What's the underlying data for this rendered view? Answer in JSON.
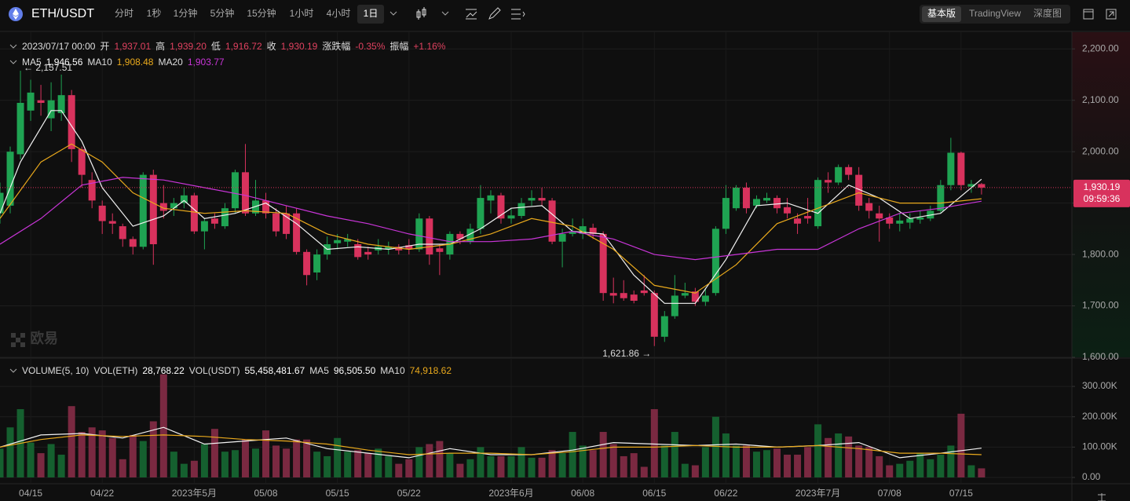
{
  "header": {
    "symbol": "ETH/USDT",
    "intervals": [
      "分时",
      "1秒",
      "1分钟",
      "5分钟",
      "15分钟",
      "1小时",
      "4小时",
      "1日"
    ],
    "active_interval": 7,
    "views": [
      "基本版",
      "TradingView",
      "深度图"
    ],
    "active_view": 0
  },
  "watermark": "欧易",
  "info": {
    "datetime": "2023/07/17 00:00",
    "fields": [
      {
        "label": "开",
        "value": "1,937.01"
      },
      {
        "label": "高",
        "value": "1,939.20"
      },
      {
        "label": "低",
        "value": "1,916.72"
      },
      {
        "label": "收",
        "value": "1,930.19"
      },
      {
        "label": "涨跌幅",
        "value": "-0.35%"
      },
      {
        "label": "振幅",
        "value": "+1.16%"
      }
    ]
  },
  "chart_data": [
    {
      "type": "candlestick",
      "up_color": "#1fa352",
      "down_color": "#d8325d",
      "grid": true,
      "ylim": [
        1600,
        2234
      ],
      "yticks": [
        {
          "value": 1600,
          "label": "1,600.00"
        },
        {
          "value": 1700,
          "label": "1,700.00"
        },
        {
          "value": 1800,
          "label": "1,800.00"
        },
        {
          "value": 1900,
          "label": "1,900.00"
        },
        {
          "value": 2000,
          "label": "2,000.00"
        },
        {
          "value": 2100,
          "label": "2,100.00"
        },
        {
          "value": 2200,
          "label": "2,200.00"
        }
      ],
      "xlim": [
        0,
        104.8
      ],
      "xticks": [
        {
          "value": 3,
          "label": "04/15"
        },
        {
          "value": 10,
          "label": "04/22"
        },
        {
          "value": 19,
          "label": "2023年5月"
        },
        {
          "value": 26,
          "label": "05/08"
        },
        {
          "value": 33,
          "label": "05/15"
        },
        {
          "value": 40,
          "label": "05/22"
        },
        {
          "value": 50,
          "label": "2023年6月"
        },
        {
          "value": 57,
          "label": "06/08"
        },
        {
          "value": 64,
          "label": "06/15"
        },
        {
          "value": 71,
          "label": "06/22"
        },
        {
          "value": 80,
          "label": "2023年7月"
        },
        {
          "value": 87,
          "label": "07/08"
        },
        {
          "value": 94,
          "label": "07/15"
        }
      ],
      "ohlc": [
        [
          1880,
          1940,
          1860,
          1920
        ],
        [
          1895,
          2010,
          1880,
          2000
        ],
        [
          1995,
          2157.51,
          1985,
          2095
        ],
        [
          2080,
          2140,
          2060,
          2115
        ],
        [
          2100,
          2130,
          2070,
          2095
        ],
        [
          2065,
          2135,
          2040,
          2100
        ],
        [
          2075,
          2150,
          2060,
          2110
        ],
        [
          2110,
          2120,
          1980,
          2005
        ],
        [
          2005,
          2010,
          1930,
          1955
        ],
        [
          1945,
          1960,
          1890,
          1905
        ],
        [
          1895,
          1905,
          1840,
          1865
        ],
        [
          1865,
          1880,
          1840,
          1860
        ],
        [
          1855,
          1860,
          1815,
          1830
        ],
        [
          1830,
          1835,
          1800,
          1815
        ],
        [
          1815,
          1960,
          1810,
          1955
        ],
        [
          1955,
          1965,
          1780,
          1820
        ],
        [
          1900,
          1935,
          1870,
          1885
        ],
        [
          1890,
          1910,
          1875,
          1900
        ],
        [
          1900,
          1930,
          1890,
          1915
        ],
        [
          1915,
          1920,
          1840,
          1845
        ],
        [
          1845,
          1870,
          1810,
          1865
        ],
        [
          1870,
          1880,
          1850,
          1860
        ],
        [
          1855,
          1900,
          1850,
          1890
        ],
        [
          1890,
          1965,
          1880,
          1960
        ],
        [
          1960,
          2015,
          1875,
          1880
        ],
        [
          1880,
          1945,
          1875,
          1905
        ],
        [
          1905,
          1920,
          1870,
          1880
        ],
        [
          1880,
          1890,
          1835,
          1845
        ],
        [
          1880,
          1895,
          1830,
          1840
        ],
        [
          1880,
          1890,
          1800,
          1805
        ],
        [
          1805,
          1810,
          1740,
          1760
        ],
        [
          1765,
          1810,
          1750,
          1800
        ],
        [
          1800,
          1835,
          1790,
          1820
        ],
        [
          1822,
          1840,
          1810,
          1828
        ],
        [
          1825,
          1840,
          1815,
          1830
        ],
        [
          1820,
          1830,
          1790,
          1795
        ],
        [
          1805,
          1815,
          1790,
          1800
        ],
        [
          1808,
          1830,
          1800,
          1815
        ],
        [
          1810,
          1825,
          1800,
          1815
        ],
        [
          1815,
          1820,
          1800,
          1808
        ],
        [
          1818,
          1830,
          1800,
          1810
        ],
        [
          1810,
          1880,
          1805,
          1870
        ],
        [
          1870,
          1875,
          1780,
          1800
        ],
        [
          1812,
          1820,
          1760,
          1805
        ],
        [
          1800,
          1845,
          1790,
          1840
        ],
        [
          1840,
          1845,
          1820,
          1830
        ],
        [
          1825,
          1860,
          1820,
          1850
        ],
        [
          1850,
          1935,
          1840,
          1910
        ],
        [
          1905,
          1925,
          1880,
          1915
        ],
        [
          1915,
          1920,
          1860,
          1870
        ],
        [
          1870,
          1890,
          1860,
          1876
        ],
        [
          1875,
          1910,
          1870,
          1900
        ],
        [
          1905,
          1925,
          1895,
          1910
        ],
        [
          1910,
          1930,
          1895,
          1905
        ],
        [
          1905,
          1910,
          1820,
          1825
        ],
        [
          1825,
          1850,
          1775,
          1840
        ],
        [
          1840,
          1870,
          1835,
          1845
        ],
        [
          1840,
          1870,
          1830,
          1855
        ],
        [
          1852,
          1860,
          1830,
          1840
        ],
        [
          1840,
          1845,
          1710,
          1725
        ],
        [
          1725,
          1755,
          1705,
          1720
        ],
        [
          1725,
          1750,
          1710,
          1715
        ],
        [
          1722,
          1730,
          1705,
          1710
        ],
        [
          1730,
          1760,
          1720,
          1725
        ],
        [
          1725,
          1730,
          1621.86,
          1640
        ],
        [
          1640,
          1690,
          1630,
          1680
        ],
        [
          1680,
          1760,
          1675,
          1720
        ],
        [
          1720,
          1745,
          1715,
          1725
        ],
        [
          1728,
          1735,
          1700,
          1708
        ],
        [
          1708,
          1735,
          1700,
          1720
        ],
        [
          1725,
          1855,
          1720,
          1850
        ],
        [
          1850,
          1935,
          1840,
          1910
        ],
        [
          1890,
          1935,
          1885,
          1930
        ],
        [
          1930,
          1940,
          1880,
          1890
        ],
        [
          1895,
          1915,
          1890,
          1908
        ],
        [
          1905,
          1920,
          1900,
          1910
        ],
        [
          1910,
          1915,
          1880,
          1890
        ],
        [
          1892,
          1910,
          1870,
          1880
        ],
        [
          1870,
          1880,
          1840,
          1860
        ],
        [
          1875,
          1910,
          1860,
          1870
        ],
        [
          1855,
          1950,
          1850,
          1945
        ],
        [
          1945,
          1960,
          1920,
          1940
        ],
        [
          1940,
          1975,
          1935,
          1970
        ],
        [
          1970,
          1975,
          1945,
          1955
        ],
        [
          1955,
          1970,
          1885,
          1895
        ],
        [
          1900,
          1910,
          1870,
          1885
        ],
        [
          1880,
          1895,
          1825,
          1870
        ],
        [
          1872,
          1880,
          1850,
          1860
        ],
        [
          1860,
          1880,
          1845,
          1866
        ],
        [
          1862,
          1880,
          1850,
          1870
        ],
        [
          1868,
          1885,
          1860,
          1872
        ],
        [
          1870,
          1895,
          1865,
          1885
        ],
        [
          1885,
          1945,
          1880,
          1935
        ],
        [
          1935,
          2027,
          1925,
          1998
        ],
        [
          1998,
          2000,
          1925,
          1935
        ],
        [
          1932,
          1945,
          1920,
          1937
        ],
        [
          1937.01,
          1939.2,
          1916.72,
          1930.19
        ]
      ],
      "series": [
        {
          "name": "MA5",
          "color": "#f2f2f2",
          "value_label": "1,946.56",
          "x": [
            0,
            2,
            5,
            6,
            8,
            10,
            13,
            16,
            18,
            20,
            23,
            26,
            29,
            32,
            35,
            38,
            41,
            44,
            47,
            50,
            53,
            56,
            59,
            62,
            65,
            68,
            71,
            74,
            77,
            80,
            83,
            86,
            89,
            92,
            96
          ],
          "values": [
            1880,
            1980,
            2080,
            2080,
            2020,
            1930,
            1855,
            1875,
            1905,
            1870,
            1880,
            1900,
            1860,
            1810,
            1815,
            1810,
            1820,
            1820,
            1850,
            1890,
            1895,
            1845,
            1840,
            1760,
            1705,
            1705,
            1790,
            1895,
            1900,
            1880,
            1935,
            1910,
            1870,
            1880,
            1946.56
          ]
        },
        {
          "name": "MA10",
          "color": "#e9a91c",
          "value_label": "1,908.48",
          "x": [
            0,
            4,
            7,
            10,
            13,
            16,
            20,
            24,
            28,
            32,
            36,
            40,
            44,
            48,
            52,
            56,
            60,
            64,
            68,
            72,
            76,
            80,
            84,
            88,
            92,
            96
          ],
          "values": [
            1870,
            1980,
            2015,
            1980,
            1920,
            1890,
            1880,
            1885,
            1880,
            1840,
            1820,
            1810,
            1820,
            1840,
            1870,
            1855,
            1810,
            1740,
            1725,
            1780,
            1860,
            1890,
            1920,
            1900,
            1900,
            1908.48
          ]
        },
        {
          "name": "MA20",
          "color": "#c935d8",
          "value_label": "1,903.77",
          "x": [
            0,
            4,
            8,
            12,
            16,
            20,
            24,
            28,
            32,
            36,
            40,
            44,
            48,
            52,
            56,
            60,
            64,
            68,
            72,
            76,
            80,
            84,
            88,
            92,
            96
          ],
          "values": [
            1820,
            1870,
            1935,
            1950,
            1945,
            1930,
            1915,
            1895,
            1875,
            1860,
            1840,
            1825,
            1825,
            1830,
            1845,
            1830,
            1800,
            1790,
            1800,
            1810,
            1810,
            1850,
            1880,
            1890,
            1903.77
          ]
        }
      ],
      "last_price": {
        "value": 1930.19,
        "label": "1,930.19",
        "countdown": "09:59:36"
      },
      "annotations": [
        {
          "text": "← 2,157.51",
          "x": 2,
          "value": 2157.51
        },
        {
          "text": "1,621.86 →",
          "x": 64,
          "value": 1621.86
        }
      ]
    },
    {
      "type": "bar",
      "title": "VOLUME(5, 10)",
      "up_color": "#15602f",
      "down_color": "#7a2941",
      "grid": true,
      "fields": [
        {
          "label": "VOL(ETH)",
          "value": "28,768.22"
        },
        {
          "label": "VOL(USDT)",
          "value": "55,458,481.67"
        }
      ],
      "ylim": [
        0,
        383000
      ],
      "yticks": [
        {
          "value": 0,
          "label": "0.00"
        },
        {
          "value": 100000,
          "label": "100.00K"
        },
        {
          "value": 200000,
          "label": "200.00K"
        },
        {
          "value": 300000,
          "label": "300.00K"
        }
      ],
      "values": [
        95000,
        165000,
        225000,
        115000,
        80000,
        110000,
        75000,
        235000,
        150000,
        165000,
        155000,
        130000,
        60000,
        140000,
        120000,
        185000,
        340000,
        85000,
        45000,
        55000,
        110000,
        160000,
        85000,
        90000,
        125000,
        95000,
        155000,
        105000,
        95000,
        125000,
        125000,
        85000,
        70000,
        130000,
        85000,
        90000,
        80000,
        95000,
        70000,
        45000,
        60000,
        100000,
        110000,
        120000,
        80000,
        45000,
        60000,
        100000,
        70000,
        70000,
        70000,
        100000,
        65000,
        65000,
        90000,
        80000,
        150000,
        105000,
        90000,
        150000,
        110000,
        70000,
        80000,
        35000,
        225000,
        105000,
        150000,
        45000,
        40000,
        100000,
        200000,
        145000,
        105000,
        105000,
        85000,
        90000,
        95000,
        75000,
        75000,
        100000,
        175000,
        130000,
        145000,
        135000,
        105000,
        100000,
        70000,
        40000,
        45000,
        55000,
        80000,
        60000,
        75000,
        105000,
        210000,
        40000,
        30000
      ],
      "series": [
        {
          "name": "MA5",
          "color": "#f2f2f2",
          "value_label": "96,505.50",
          "x": [
            0,
            4,
            8,
            12,
            16,
            20,
            24,
            28,
            32,
            36,
            40,
            44,
            48,
            52,
            56,
            60,
            64,
            68,
            72,
            76,
            80,
            84,
            88,
            92,
            96
          ],
          "values": [
            100000,
            140000,
            145000,
            130000,
            165000,
            110000,
            120000,
            130000,
            95000,
            80000,
            65000,
            95000,
            75000,
            75000,
            90000,
            115000,
            110000,
            105000,
            110000,
            100000,
            105000,
            115000,
            65000,
            80000,
            96505.5
          ]
        },
        {
          "name": "MA10",
          "color": "#e9a91c",
          "value_label": "74,918.62",
          "x": [
            0,
            4,
            8,
            12,
            16,
            20,
            24,
            28,
            32,
            36,
            40,
            44,
            48,
            52,
            56,
            60,
            64,
            68,
            72,
            76,
            80,
            84,
            88,
            92,
            96
          ],
          "values": [
            100000,
            125000,
            140000,
            135000,
            140000,
            135000,
            125000,
            120000,
            110000,
            90000,
            75000,
            80000,
            80000,
            75000,
            85000,
            100000,
            100000,
            105000,
            100000,
            100000,
            105000,
            95000,
            80000,
            80000,
            74918.62
          ]
        }
      ]
    }
  ]
}
